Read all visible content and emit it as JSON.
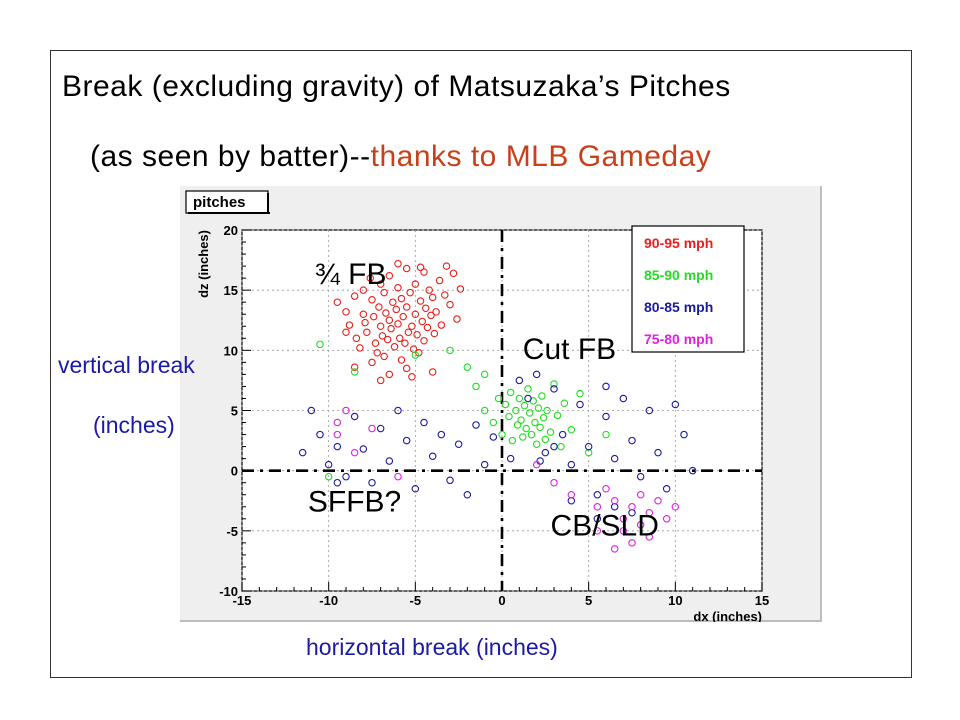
{
  "title": {
    "line1": "Break (excluding gravity) of Matsuzaka’s Pitches",
    "line2_main": "(as seen by batter)--",
    "line2_credit": "thanks to MLB Gameday"
  },
  "side_labels": {
    "y_line1": "vertical break",
    "y_line2": "(inches)",
    "x": "horizontal break (inches)"
  },
  "colors": {
    "red": "#e8201a",
    "green": "#22dd22",
    "blue": "#1a1aa0",
    "magenta": "#e020e0",
    "credit": "#c8401a",
    "label_blue": "#1a1aa6"
  },
  "chart_data": {
    "type": "scatter",
    "title": "pitches",
    "xlabel": "dx (inches)",
    "ylabel": "dz (inches)",
    "xlim": [
      -15,
      15
    ],
    "ylim": [
      -10,
      20
    ],
    "x_ticks": [
      -15,
      -10,
      -5,
      0,
      5,
      10,
      15
    ],
    "y_ticks": [
      -10,
      -5,
      0,
      5,
      10,
      15,
      20
    ],
    "grid": true,
    "legend_position": "top-right",
    "legend": [
      "90-95 mph",
      "85-90 mph",
      "80-85 mph",
      "75-80 mph"
    ],
    "annotations": [
      "¾ FB",
      "Cut FB",
      "SFFB?",
      "CB/SLD"
    ],
    "series": [
      {
        "name": "90-95 mph",
        "points": [
          [
            -9.5,
            14.0
          ],
          [
            -9.0,
            13.2
          ],
          [
            -8.8,
            12.1
          ],
          [
            -8.5,
            14.5
          ],
          [
            -8.4,
            11.0
          ],
          [
            -8.2,
            10.2
          ],
          [
            -8.0,
            15.0
          ],
          [
            -8.0,
            13.0
          ],
          [
            -7.9,
            12.3
          ],
          [
            -7.8,
            11.5
          ],
          [
            -7.6,
            16.0
          ],
          [
            -7.5,
            14.2
          ],
          [
            -7.4,
            12.8
          ],
          [
            -7.3,
            10.6
          ],
          [
            -7.2,
            9.8
          ],
          [
            -7.1,
            13.6
          ],
          [
            -7.0,
            15.5
          ],
          [
            -7.0,
            12.0
          ],
          [
            -6.9,
            11.2
          ],
          [
            -6.8,
            14.8
          ],
          [
            -6.8,
            9.5
          ],
          [
            -6.7,
            13.1
          ],
          [
            -6.6,
            10.9
          ],
          [
            -6.5,
            16.2
          ],
          [
            -6.5,
            12.5
          ],
          [
            -6.4,
            11.8
          ],
          [
            -6.3,
            14.0
          ],
          [
            -6.2,
            10.3
          ],
          [
            -6.1,
            13.4
          ],
          [
            -6.0,
            15.2
          ],
          [
            -6.0,
            12.2
          ],
          [
            -5.9,
            11.0
          ],
          [
            -5.8,
            9.2
          ],
          [
            -5.8,
            14.3
          ],
          [
            -5.7,
            12.8
          ],
          [
            -5.6,
            10.6
          ],
          [
            -5.5,
            16.8
          ],
          [
            -5.5,
            13.6
          ],
          [
            -5.4,
            11.5
          ],
          [
            -5.3,
            14.8
          ],
          [
            -5.2,
            12.0
          ],
          [
            -5.1,
            10.1
          ],
          [
            -5.0,
            15.5
          ],
          [
            -5.0,
            13.0
          ],
          [
            -4.9,
            11.3
          ],
          [
            -4.8,
            9.8
          ],
          [
            -4.7,
            14.1
          ],
          [
            -4.6,
            12.4
          ],
          [
            -4.5,
            16.5
          ],
          [
            -4.5,
            10.8
          ],
          [
            -4.4,
            13.5
          ],
          [
            -4.3,
            11.9
          ],
          [
            -4.2,
            15.0
          ],
          [
            -4.1,
            12.9
          ],
          [
            -4.0,
            14.4
          ],
          [
            -3.9,
            11.4
          ],
          [
            -3.8,
            13.2
          ],
          [
            -3.6,
            15.8
          ],
          [
            -3.5,
            12.1
          ],
          [
            -3.3,
            14.6
          ],
          [
            -3.0,
            13.8
          ],
          [
            -2.8,
            16.4
          ],
          [
            -2.6,
            12.6
          ],
          [
            -2.4,
            15.1
          ],
          [
            -3.2,
            17.0
          ],
          [
            -5.5,
            8.5
          ],
          [
            -6.5,
            8.0
          ],
          [
            -7.5,
            9.0
          ],
          [
            -8.5,
            8.6
          ],
          [
            -9.0,
            11.5
          ],
          [
            -4.0,
            8.2
          ],
          [
            -6.0,
            17.2
          ],
          [
            -7.0,
            7.5
          ],
          [
            -5.2,
            7.8
          ],
          [
            -4.7,
            16.9
          ]
        ]
      },
      {
        "name": "85-90 mph",
        "points": [
          [
            -10.5,
            10.5
          ],
          [
            -8.5,
            8.2
          ],
          [
            -5.0,
            9.6
          ],
          [
            -3.0,
            10.0
          ],
          [
            -2.0,
            8.6
          ],
          [
            -1.5,
            7.0
          ],
          [
            -1.0,
            5.0
          ],
          [
            -0.5,
            4.0
          ],
          [
            -0.2,
            6.0
          ],
          [
            0.0,
            3.0
          ],
          [
            0.2,
            5.5
          ],
          [
            0.4,
            4.5
          ],
          [
            0.5,
            6.5
          ],
          [
            0.6,
            2.5
          ],
          [
            0.8,
            5.0
          ],
          [
            0.9,
            3.8
          ],
          [
            1.0,
            6.0
          ],
          [
            1.1,
            4.2
          ],
          [
            1.2,
            2.8
          ],
          [
            1.3,
            5.4
          ],
          [
            1.4,
            3.5
          ],
          [
            1.5,
            6.8
          ],
          [
            1.6,
            4.8
          ],
          [
            1.7,
            3.0
          ],
          [
            1.8,
            5.8
          ],
          [
            1.9,
            4.0
          ],
          [
            2.0,
            2.2
          ],
          [
            2.1,
            5.2
          ],
          [
            2.2,
            3.6
          ],
          [
            2.3,
            6.2
          ],
          [
            2.4,
            4.4
          ],
          [
            2.5,
            2.6
          ],
          [
            2.6,
            5.0
          ],
          [
            2.8,
            3.2
          ],
          [
            3.0,
            7.2
          ],
          [
            3.2,
            4.6
          ],
          [
            3.4,
            2.0
          ],
          [
            3.6,
            5.6
          ],
          [
            4.0,
            3.4
          ],
          [
            4.5,
            6.4
          ],
          [
            5.0,
            1.5
          ],
          [
            6.0,
            3.0
          ],
          [
            -1.0,
            8.0
          ],
          [
            -10.0,
            -0.5
          ]
        ]
      },
      {
        "name": "80-85 mph",
        "points": [
          [
            -11.5,
            1.5
          ],
          [
            -11.0,
            5.0
          ],
          [
            -10.5,
            3.0
          ],
          [
            -10.0,
            0.5
          ],
          [
            -9.5,
            2.0
          ],
          [
            -9.0,
            -0.5
          ],
          [
            -8.5,
            4.5
          ],
          [
            -8.0,
            1.8
          ],
          [
            -7.5,
            -1.0
          ],
          [
            -7.0,
            3.5
          ],
          [
            -6.5,
            0.8
          ],
          [
            -6.0,
            5.0
          ],
          [
            -5.5,
            2.5
          ],
          [
            -5.0,
            -1.5
          ],
          [
            -4.5,
            4.0
          ],
          [
            -4.0,
            1.2
          ],
          [
            -3.5,
            3.0
          ],
          [
            -3.0,
            -0.8
          ],
          [
            -2.5,
            2.2
          ],
          [
            -2.0,
            -2.0
          ],
          [
            -1.5,
            3.8
          ],
          [
            -1.0,
            0.5
          ],
          [
            -0.5,
            2.8
          ],
          [
            0.5,
            1.0
          ],
          [
            1.0,
            7.5
          ],
          [
            1.5,
            6.0
          ],
          [
            2.0,
            8.0
          ],
          [
            2.5,
            1.5
          ],
          [
            3.0,
            6.8
          ],
          [
            3.5,
            3.0
          ],
          [
            4.0,
            0.5
          ],
          [
            4.5,
            5.5
          ],
          [
            5.0,
            2.0
          ],
          [
            5.5,
            -2.0
          ],
          [
            6.0,
            4.5
          ],
          [
            6.5,
            1.0
          ],
          [
            7.0,
            6.0
          ],
          [
            7.5,
            2.5
          ],
          [
            8.0,
            -0.5
          ],
          [
            8.5,
            5.0
          ],
          [
            9.0,
            1.5
          ],
          [
            9.5,
            -1.5
          ],
          [
            10.0,
            5.5
          ],
          [
            10.5,
            3.0
          ],
          [
            11.0,
            0.0
          ],
          [
            7.5,
            -3.5
          ],
          [
            6.5,
            -3.0
          ],
          [
            5.5,
            -4.0
          ],
          [
            4.0,
            -2.5
          ],
          [
            -9.5,
            -1.0
          ],
          [
            6.0,
            7.0
          ],
          [
            3.0,
            2.0
          ],
          [
            2.2,
            0.8
          ]
        ]
      },
      {
        "name": "75-80 mph",
        "points": [
          [
            -9.5,
            4.0
          ],
          [
            -9.5,
            3.0
          ],
          [
            -9.0,
            5.0
          ],
          [
            -8.5,
            1.5
          ],
          [
            -7.5,
            3.5
          ],
          [
            -6.0,
            -0.5
          ],
          [
            2.0,
            0.5
          ],
          [
            3.0,
            -1.0
          ],
          [
            4.0,
            -2.0
          ],
          [
            5.5,
            -3.0
          ],
          [
            6.0,
            -1.5
          ],
          [
            6.5,
            -2.5
          ],
          [
            7.0,
            -4.0
          ],
          [
            7.0,
            -5.0
          ],
          [
            7.5,
            -3.0
          ],
          [
            7.5,
            -6.0
          ],
          [
            8.0,
            -2.0
          ],
          [
            8.0,
            -4.5
          ],
          [
            8.5,
            -3.5
          ],
          [
            8.5,
            -5.5
          ],
          [
            9.0,
            -2.5
          ],
          [
            9.5,
            -4.0
          ],
          [
            10.0,
            -3.0
          ],
          [
            6.5,
            -6.5
          ],
          [
            5.5,
            -5.0
          ]
        ]
      }
    ]
  }
}
